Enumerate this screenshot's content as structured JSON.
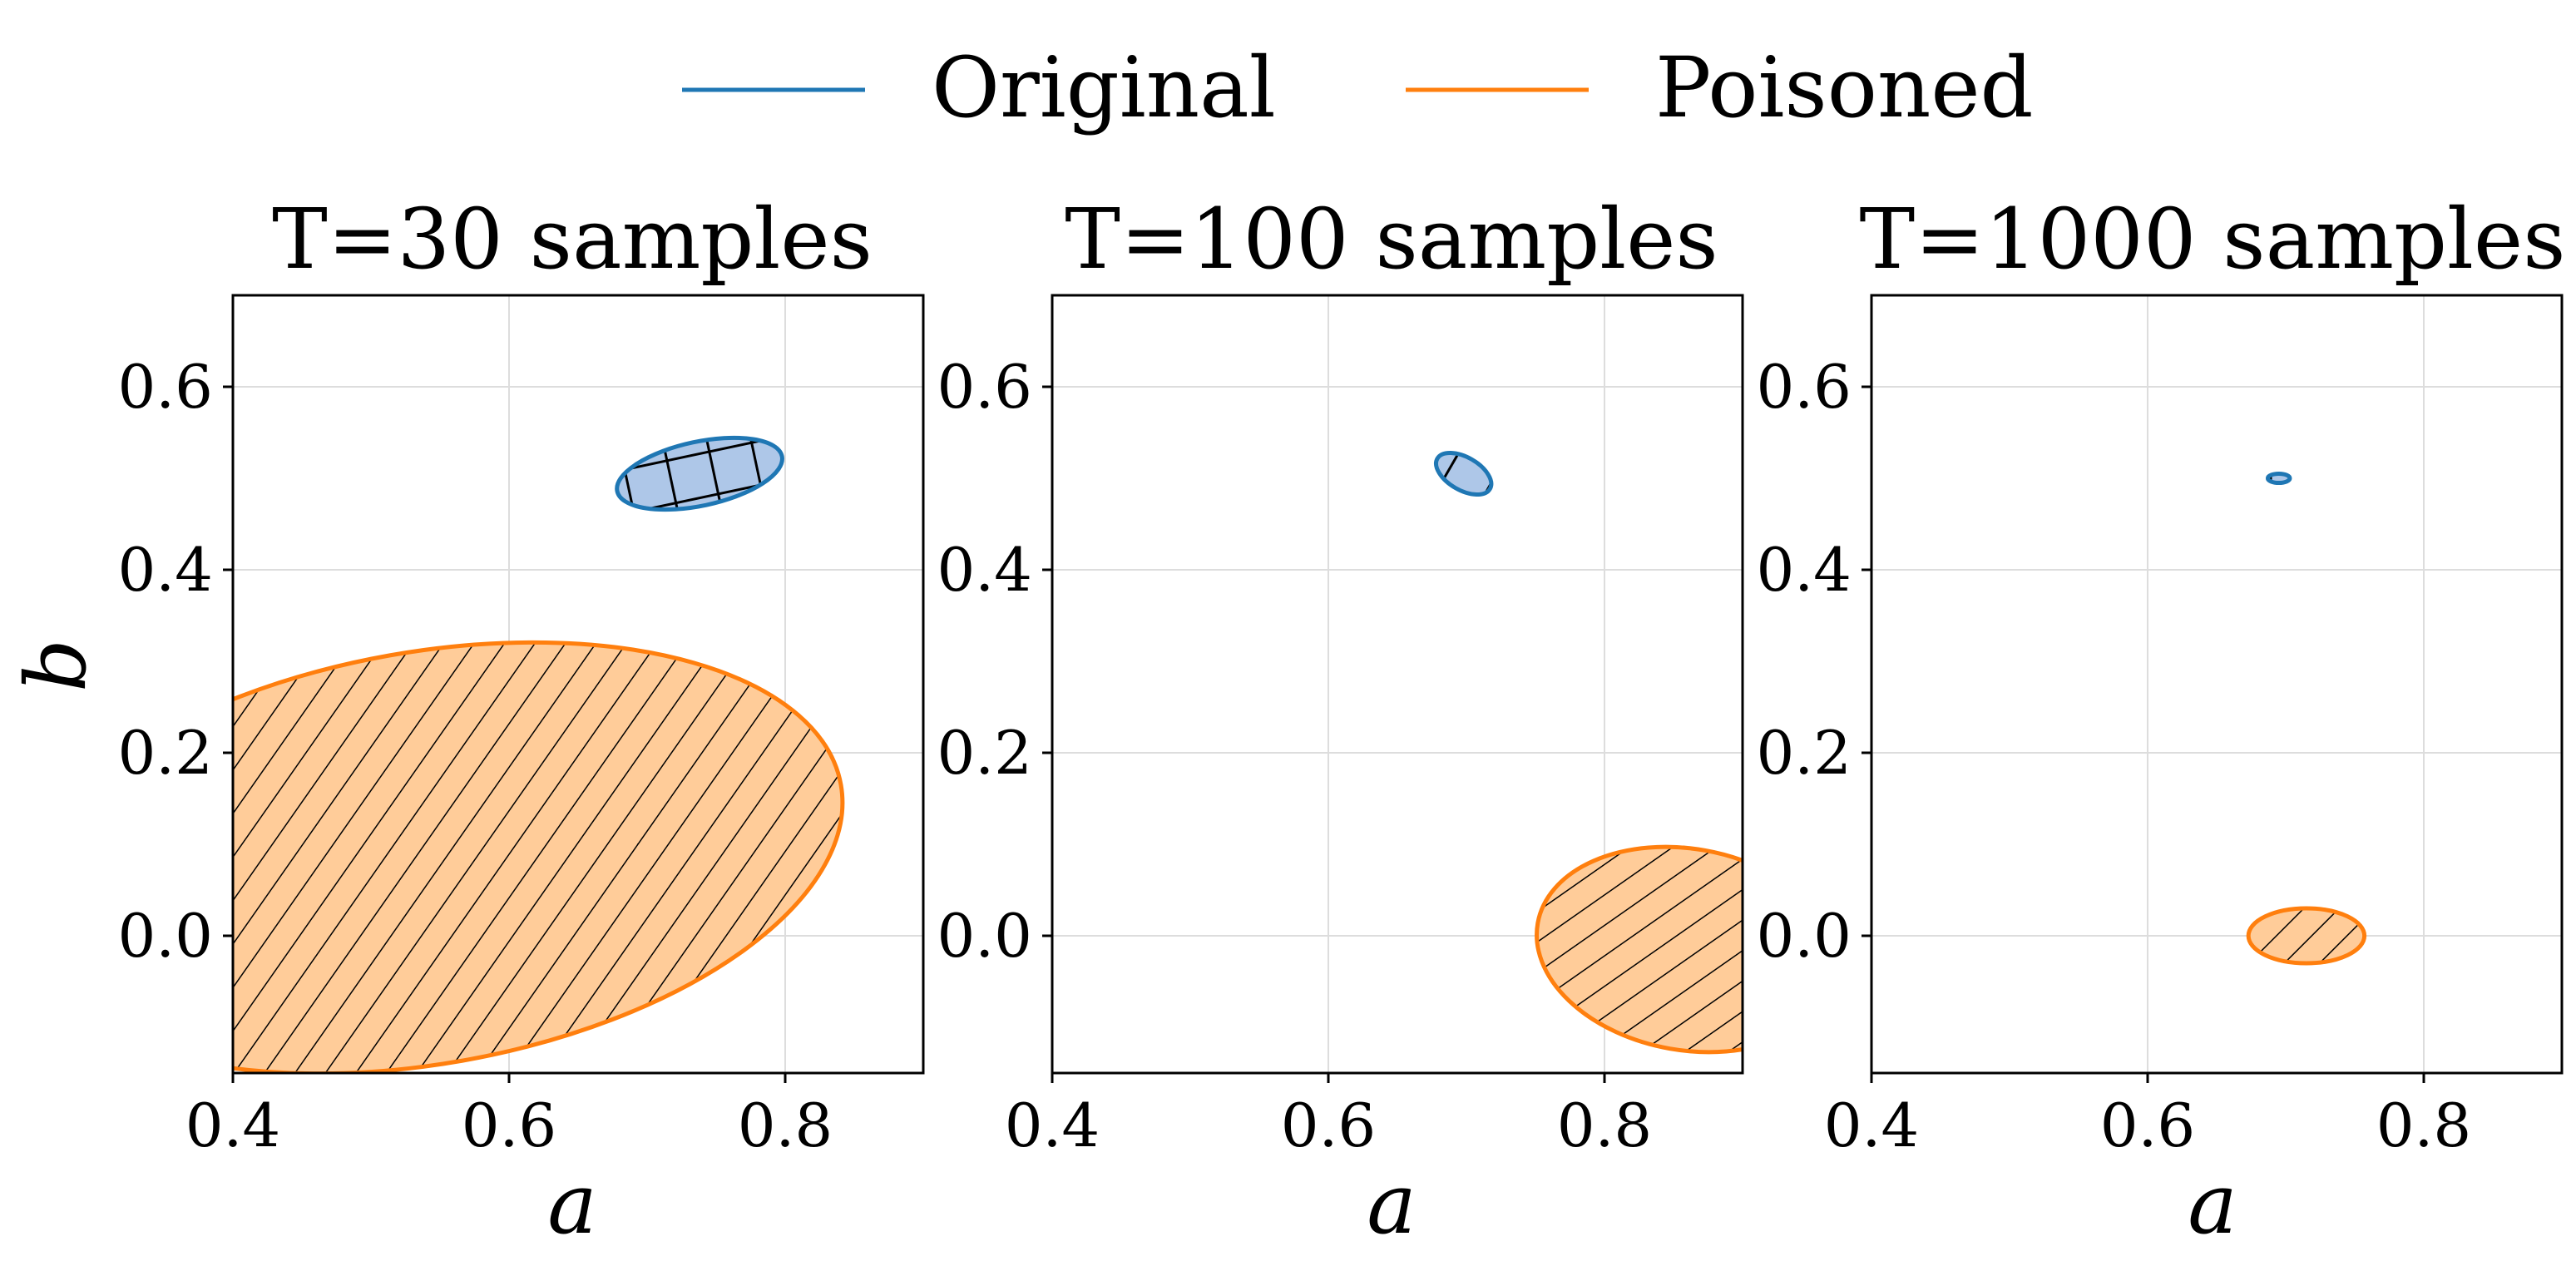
{
  "chart_data": {
    "type": "ellipse-confidence-regions",
    "legend": {
      "position": "top-center",
      "entries": [
        {
          "name": "Original",
          "color": "#1f77b4"
        },
        {
          "name": "Poisoned",
          "color": "#ff7f0e"
        }
      ]
    },
    "xlabel": "a",
    "ylabel": "b",
    "xlim": [
      0.4,
      0.9
    ],
    "ylim": [
      -0.15,
      0.7
    ],
    "xticks": [
      0.4,
      0.6,
      0.8
    ],
    "xtick_labels": [
      "0.4",
      "0.6",
      "0.8"
    ],
    "yticks": [
      0.0,
      0.2,
      0.4,
      0.6
    ],
    "ytick_labels": [
      "0.0",
      "0.2",
      "0.4",
      "0.6"
    ],
    "grid": true,
    "panels": [
      {
        "title": "T=30 samples",
        "series": [
          {
            "name": "Original",
            "center": [
              0.738,
              0.505
            ],
            "semi_axes_data": [
              0.061,
              0.035
            ],
            "angle_deg": 12,
            "hatch": "+",
            "fill": "#aec7e8",
            "edge": "#1f77b4"
          },
          {
            "name": "Poisoned",
            "center": [
              0.54,
              0.085
            ],
            "semi_axes_data": [
              0.305,
              0.225
            ],
            "angle_deg": 10,
            "hatch": "/",
            "fill": "#ffcc99",
            "edge": "#ff7f0e"
          }
        ]
      },
      {
        "title": "T=100 samples",
        "series": [
          {
            "name": "Original",
            "center": [
              0.698,
              0.505
            ],
            "semi_axes_data": [
              0.022,
              0.018
            ],
            "angle_deg": -30,
            "hatch": "+",
            "fill": "#aec7e8",
            "edge": "#1f77b4"
          },
          {
            "name": "Poisoned",
            "center": [
              0.86,
              -0.015
            ],
            "semi_axes_data": [
              0.11,
              0.11
            ],
            "angle_deg": -10,
            "hatch": "/",
            "fill": "#ffcc99",
            "edge": "#ff7f0e"
          }
        ]
      },
      {
        "title": "T=1000 samples",
        "series": [
          {
            "name": "Original",
            "center": [
              0.695,
              0.5
            ],
            "semi_axes_data": [
              0.008,
              0.005
            ],
            "angle_deg": 0,
            "hatch": "+",
            "fill": "#aec7e8",
            "edge": "#1f77b4"
          },
          {
            "name": "Poisoned",
            "center": [
              0.715,
              0.0
            ],
            "semi_axes_data": [
              0.042,
              0.03
            ],
            "angle_deg": 0,
            "hatch": "/",
            "fill": "#ffcc99",
            "edge": "#ff7f0e"
          }
        ]
      }
    ]
  }
}
